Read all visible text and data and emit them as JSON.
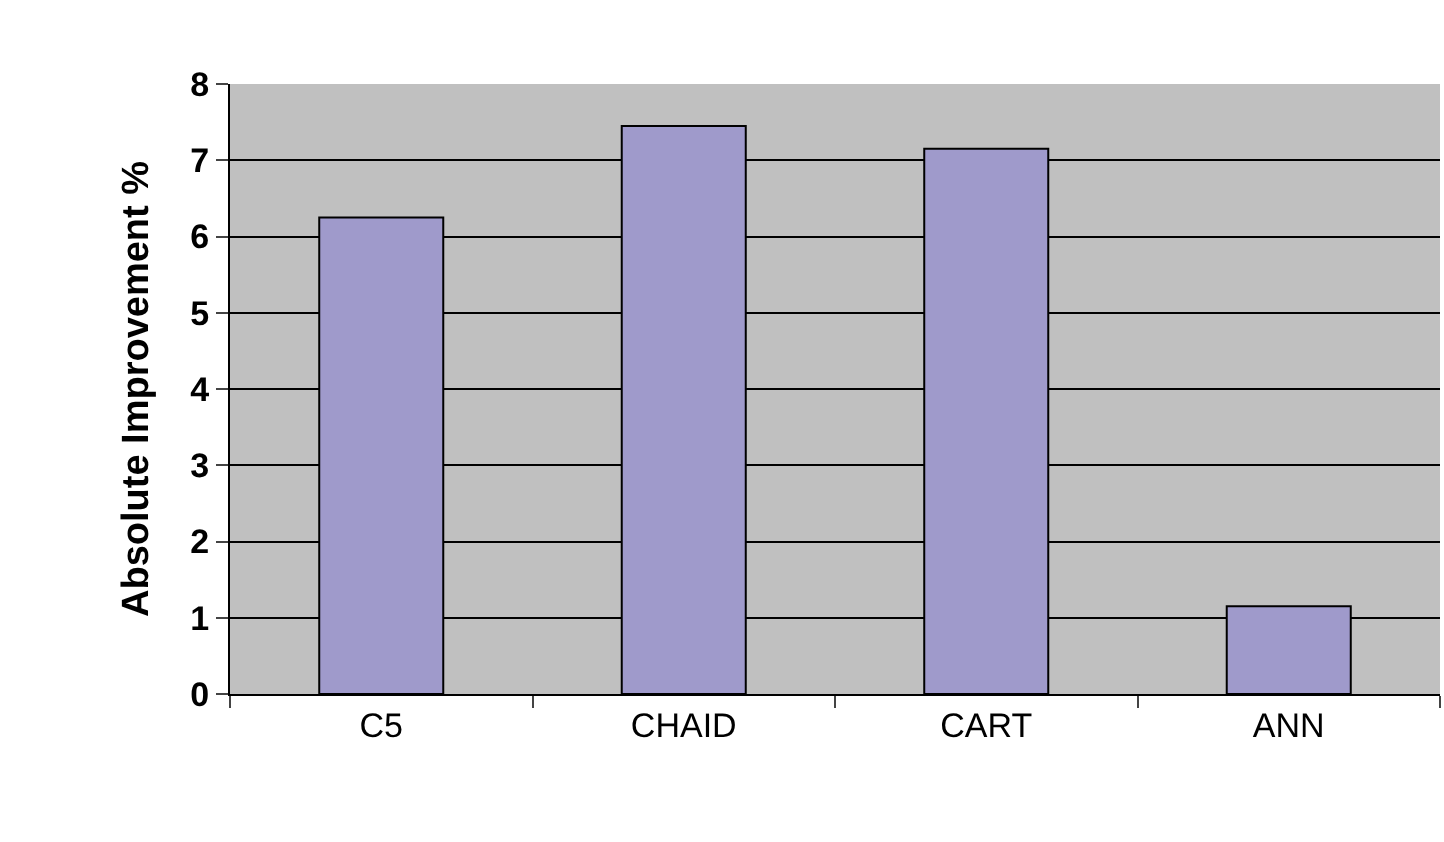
{
  "chart_data": {
    "type": "bar",
    "ylabel": "Absolute Improvement %",
    "categories": [
      "C5",
      "CHAID",
      "CART",
      "ANN"
    ],
    "values": [
      6.25,
      7.45,
      7.15,
      1.15
    ],
    "color": "#9f9acb",
    "ylim": [
      0,
      8
    ],
    "yticks": [
      0,
      1,
      2,
      3,
      4,
      5,
      6,
      7,
      8
    ],
    "grid": "y"
  }
}
